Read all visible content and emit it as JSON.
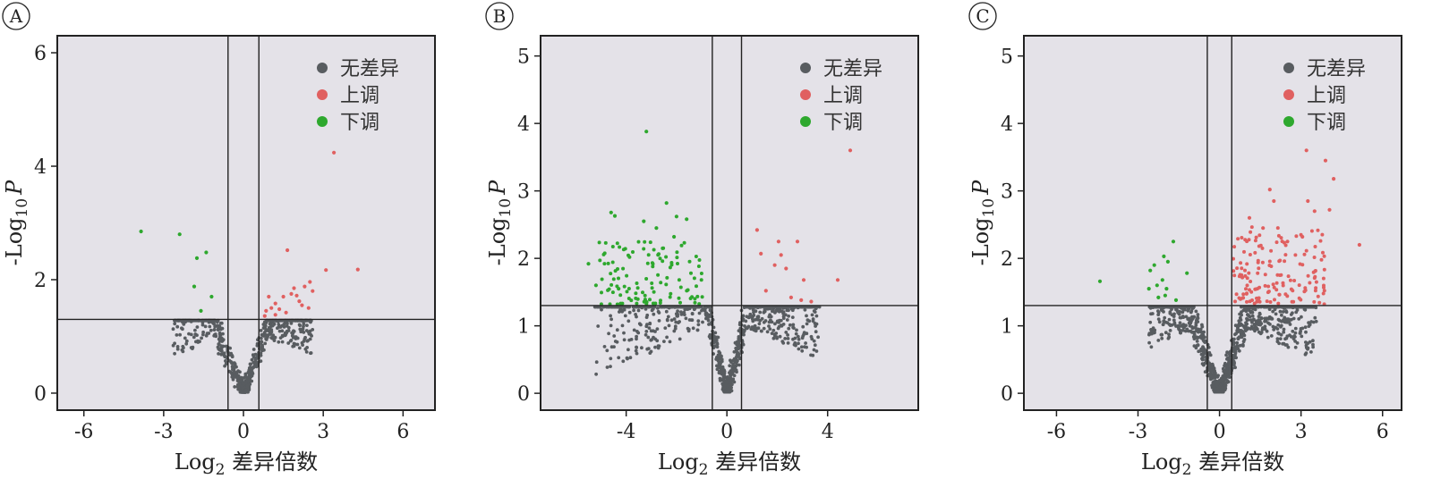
{
  "colors": {
    "plot_bg": "#e4e2e8",
    "frame": "#222222",
    "no_diff": "#585c60",
    "up": "#e06060",
    "down": "#2ea82e"
  },
  "legend": {
    "labels": [
      "无差异",
      "上调",
      "下调"
    ],
    "placement": "top-right"
  },
  "chart_data": [
    {
      "panel": "A",
      "type": "scatter",
      "xlabel_base": "Log",
      "xlabel_sub": "2",
      "xlabel_rest": " 差异倍数",
      "ylabel_base": "-Log",
      "ylabel_sub": "10",
      "ylabel_italic": "P",
      "xlim": [
        -7,
        7.2
      ],
      "ylim": [
        -0.3,
        6.3
      ],
      "xticks": [
        -6,
        -3,
        0,
        3,
        6
      ],
      "yticks": [
        0,
        2,
        4,
        6
      ],
      "xtick_labels": [
        "-6",
        "-3",
        "0",
        "3",
        "6"
      ],
      "ytick_labels": [
        "0",
        "2",
        "4",
        "6"
      ],
      "vlines": [
        -0.58,
        0.58
      ],
      "hline": 1.3,
      "up_points": [
        [
          3.4,
          4.24
        ],
        [
          4.3,
          2.18
        ],
        [
          3.1,
          2.17
        ],
        [
          1.65,
          2.52
        ],
        [
          2.5,
          1.96
        ],
        [
          2.3,
          1.88
        ],
        [
          1.9,
          1.85
        ],
        [
          2.6,
          1.8
        ],
        [
          1.5,
          1.7
        ],
        [
          2.1,
          1.62
        ],
        [
          1.2,
          1.58
        ],
        [
          0.95,
          1.7
        ],
        [
          1.8,
          1.75
        ],
        [
          2.2,
          1.55
        ],
        [
          2.45,
          1.5
        ],
        [
          1.35,
          1.48
        ],
        [
          0.85,
          1.45
        ],
        [
          1.05,
          1.5
        ],
        [
          1.6,
          1.42
        ],
        [
          2.0,
          1.72
        ],
        [
          1.2,
          1.38
        ],
        [
          0.8,
          1.36
        ]
      ],
      "down_points": [
        [
          -3.85,
          2.85
        ],
        [
          -2.4,
          2.8
        ],
        [
          -1.4,
          2.48
        ],
        [
          -1.75,
          2.38
        ],
        [
          -1.85,
          1.88
        ],
        [
          -1.2,
          1.7
        ],
        [
          -1.6,
          1.45
        ]
      ],
      "nodiff": {
        "seed": 11,
        "n": 700,
        "leftScale": 2.2,
        "rightScale": 2.6,
        "leftRange": 2.6,
        "rightRange": 2.6
      }
    },
    {
      "panel": "B",
      "type": "scatter",
      "xlabel_base": "Log",
      "xlabel_sub": "2",
      "xlabel_rest": " 差异倍数",
      "ylabel_base": "-Log",
      "ylabel_sub": "10",
      "ylabel_italic": "P",
      "xlim": [
        -7.4,
        7.6
      ],
      "ylim": [
        -0.25,
        5.3
      ],
      "xticks": [
        -4,
        0,
        4
      ],
      "yticks": [
        0,
        1,
        2,
        3,
        4,
        5
      ],
      "xtick_labels": [
        "-4",
        "0",
        "4"
      ],
      "ytick_labels": [
        "0",
        "1",
        "2",
        "3",
        "4",
        "5"
      ],
      "vlines": [
        -0.58,
        0.58
      ],
      "hline": 1.3,
      "up_points": [
        [
          4.9,
          3.6
        ],
        [
          1.2,
          2.42
        ],
        [
          2.05,
          2.25
        ],
        [
          2.8,
          2.25
        ],
        [
          1.35,
          2.07
        ],
        [
          2.15,
          2.05
        ],
        [
          1.9,
          1.9
        ],
        [
          2.35,
          1.85
        ],
        [
          3.05,
          1.68
        ],
        [
          4.4,
          1.68
        ],
        [
          1.55,
          1.52
        ],
        [
          2.55,
          1.42
        ],
        [
          3.35,
          1.36
        ],
        [
          2.95,
          1.38
        ]
      ],
      "down_points": [
        [
          -3.2,
          3.88
        ],
        [
          -4.6,
          2.68
        ],
        [
          -4.45,
          2.63
        ],
        [
          -2.4,
          2.82
        ],
        [
          -2.0,
          2.62
        ],
        [
          -3.3,
          2.55
        ],
        [
          -1.6,
          2.58
        ],
        [
          -2.8,
          2.45
        ],
        [
          -2.1,
          2.32
        ],
        [
          -5.5,
          1.92
        ],
        [
          -5.2,
          1.6
        ],
        [
          -4.3,
          1.55
        ]
      ],
      "down_cloud": {
        "seed": 7,
        "n": 115,
        "xmin": -5.1,
        "xmax": -0.9,
        "ymin": 1.32,
        "ymax": 2.25
      },
      "nodiff": {
        "seed": 23,
        "n": 950,
        "leftScale": 3.2,
        "rightScale": 3.0,
        "leftRange": 5.2,
        "rightRange": 3.6
      }
    },
    {
      "panel": "C",
      "type": "scatter",
      "xlabel_base": "Log",
      "xlabel_sub": "2",
      "xlabel_rest": " 差异倍数",
      "ylabel_base": "-Log",
      "ylabel_sub": "10",
      "ylabel_italic": "P",
      "xlim": [
        -7.2,
        6.7
      ],
      "ylim": [
        -0.25,
        5.3
      ],
      "xticks": [
        -6,
        -3,
        0,
        3,
        6
      ],
      "yticks": [
        0,
        1,
        2,
        3,
        4,
        5
      ],
      "xtick_labels": [
        "-6",
        "-3",
        "0",
        "3",
        "6"
      ],
      "ytick_labels": [
        "0",
        "1",
        "2",
        "3",
        "4",
        "5"
      ],
      "vlines": [
        -0.45,
        0.45
      ],
      "hline": 1.3,
      "up_points": [
        [
          3.2,
          3.6
        ],
        [
          3.9,
          3.45
        ],
        [
          4.2,
          3.18
        ],
        [
          1.85,
          3.02
        ],
        [
          2.0,
          2.85
        ],
        [
          3.25,
          2.85
        ],
        [
          3.5,
          2.7
        ],
        [
          4.05,
          2.72
        ],
        [
          1.1,
          2.6
        ],
        [
          1.6,
          2.45
        ],
        [
          3.05,
          2.32
        ],
        [
          2.5,
          2.25
        ],
        [
          5.15,
          2.2
        ]
      ],
      "up_cloud": {
        "seed": 5,
        "n": 150,
        "xmin": 0.5,
        "xmax": 3.9,
        "ymin": 1.32,
        "ymax": 2.5
      },
      "down_points": [
        [
          -4.4,
          1.66
        ],
        [
          -1.7,
          2.25
        ],
        [
          -2.05,
          2.03
        ],
        [
          -1.9,
          1.95
        ],
        [
          -2.4,
          1.9
        ],
        [
          -2.55,
          1.82
        ],
        [
          -1.2,
          1.78
        ],
        [
          -2.1,
          1.68
        ],
        [
          -2.3,
          1.6
        ],
        [
          -1.95,
          1.55
        ],
        [
          -2.6,
          1.55
        ],
        [
          -2.0,
          1.45
        ],
        [
          -2.25,
          1.42
        ],
        [
          -1.6,
          1.38
        ]
      ],
      "nodiff": {
        "seed": 31,
        "n": 1050,
        "leftScale": 2.2,
        "rightScale": 2.4,
        "leftRange": 2.6,
        "rightRange": 3.5
      }
    }
  ]
}
